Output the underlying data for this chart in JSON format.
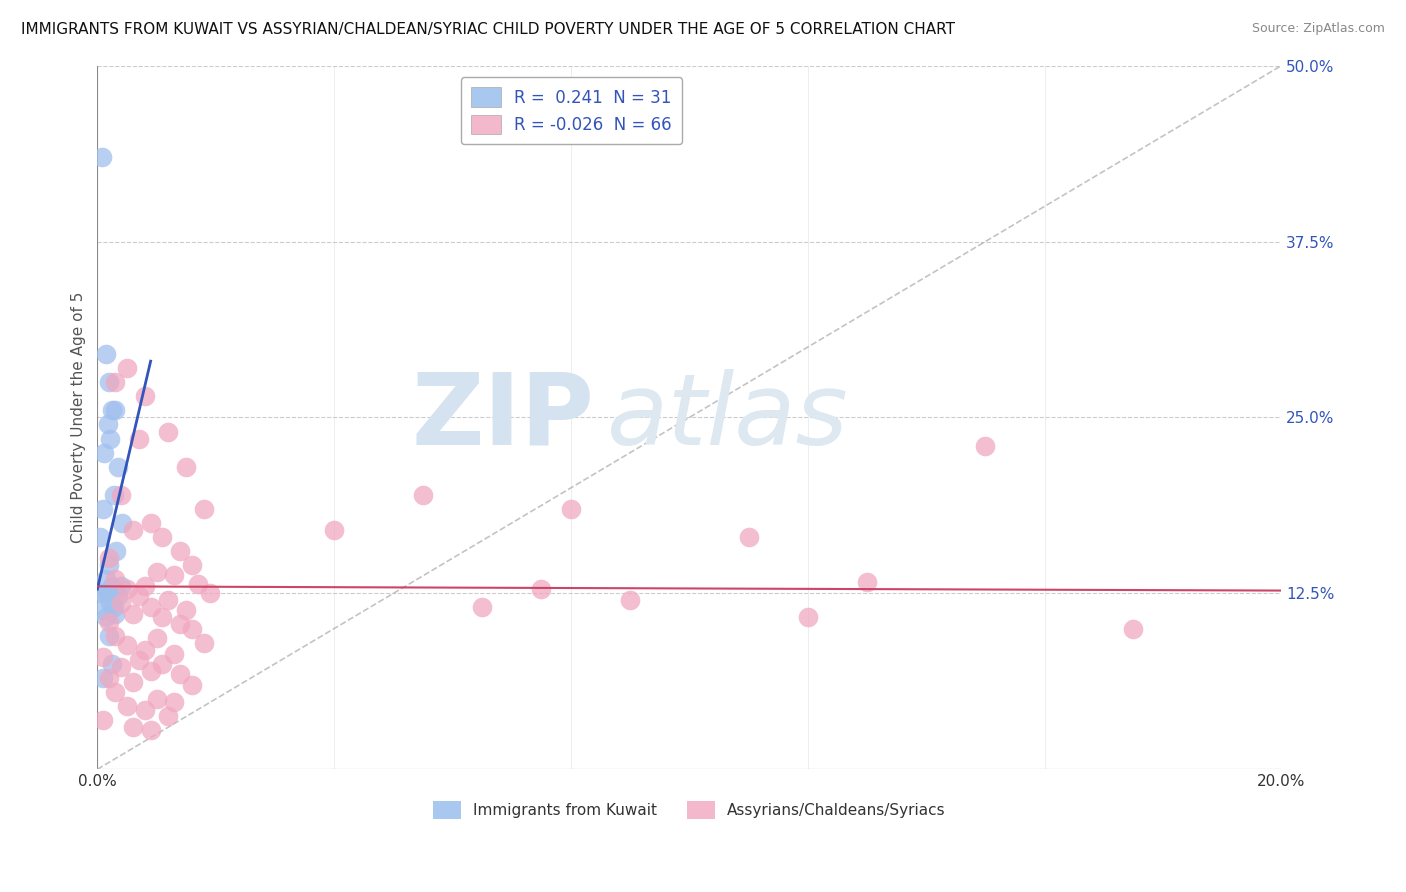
{
  "title": "IMMIGRANTS FROM KUWAIT VS ASSYRIAN/CHALDEAN/SYRIAC CHILD POVERTY UNDER THE AGE OF 5 CORRELATION CHART",
  "source": "Source: ZipAtlas.com",
  "ylabel": "Child Poverty Under the Age of 5",
  "xlim": [
    0.0,
    0.2
  ],
  "ylim": [
    0.0,
    0.5
  ],
  "xticks": [
    0.0,
    0.04,
    0.08,
    0.12,
    0.16,
    0.2
  ],
  "xtick_labels": [
    "0.0%",
    "",
    "",
    "",
    "",
    "20.0%"
  ],
  "ytick_labels_right": [
    "50.0%",
    "37.5%",
    "25.0%",
    "12.5%"
  ],
  "ytick_vals_right": [
    0.5,
    0.375,
    0.25,
    0.125
  ],
  "legend_color1": "#a8c8f0",
  "legend_color2": "#f4b8cc",
  "color1": "#a0c0ee",
  "color2": "#f0a8c0",
  "line_color1": "#3355bb",
  "line_color2": "#cc4466",
  "legend_text_color": "#3355bb",
  "background_color": "#ffffff",
  "grid_color": "#cccccc",
  "scatter1_x": [
    0.0008,
    0.0015,
    0.002,
    0.0025,
    0.003,
    0.0018,
    0.0022,
    0.0012,
    0.0035,
    0.0028,
    0.001,
    0.0042,
    0.0005,
    0.0032,
    0.002,
    0.0015,
    0.004,
    0.0025,
    0.003,
    0.0008,
    0.0018,
    0.0012,
    0.0035,
    0.0022,
    0.0028,
    0.001,
    0.003,
    0.0015,
    0.002,
    0.0025,
    0.001
  ],
  "scatter1_y": [
    0.435,
    0.295,
    0.275,
    0.255,
    0.255,
    0.245,
    0.235,
    0.225,
    0.215,
    0.195,
    0.185,
    0.175,
    0.165,
    0.155,
    0.145,
    0.135,
    0.13,
    0.13,
    0.128,
    0.125,
    0.125,
    0.125,
    0.123,
    0.118,
    0.115,
    0.113,
    0.11,
    0.108,
    0.095,
    0.075,
    0.065
  ],
  "scatter2_x": [
    0.005,
    0.008,
    0.003,
    0.012,
    0.007,
    0.015,
    0.004,
    0.018,
    0.009,
    0.006,
    0.011,
    0.014,
    0.002,
    0.016,
    0.01,
    0.013,
    0.003,
    0.017,
    0.008,
    0.005,
    0.019,
    0.007,
    0.012,
    0.004,
    0.009,
    0.015,
    0.006,
    0.011,
    0.002,
    0.014,
    0.016,
    0.003,
    0.01,
    0.018,
    0.005,
    0.008,
    0.013,
    0.001,
    0.007,
    0.011,
    0.004,
    0.009,
    0.014,
    0.002,
    0.006,
    0.016,
    0.003,
    0.01,
    0.013,
    0.005,
    0.008,
    0.012,
    0.001,
    0.006,
    0.009,
    0.15,
    0.08,
    0.055,
    0.04,
    0.11,
    0.13,
    0.075,
    0.09,
    0.065,
    0.12,
    0.175
  ],
  "scatter2_y": [
    0.285,
    0.265,
    0.275,
    0.24,
    0.235,
    0.215,
    0.195,
    0.185,
    0.175,
    0.17,
    0.165,
    0.155,
    0.15,
    0.145,
    0.14,
    0.138,
    0.135,
    0.132,
    0.13,
    0.128,
    0.125,
    0.123,
    0.12,
    0.118,
    0.115,
    0.113,
    0.11,
    0.108,
    0.105,
    0.103,
    0.1,
    0.095,
    0.093,
    0.09,
    0.088,
    0.085,
    0.082,
    0.08,
    0.078,
    0.075,
    0.073,
    0.07,
    0.068,
    0.065,
    0.062,
    0.06,
    0.055,
    0.05,
    0.048,
    0.045,
    0.042,
    0.038,
    0.035,
    0.03,
    0.028,
    0.23,
    0.185,
    0.195,
    0.17,
    0.165,
    0.133,
    0.128,
    0.12,
    0.115,
    0.108,
    0.1
  ],
  "blue_line_x": [
    0.0,
    0.009
  ],
  "blue_line_y_start": 0.128,
  "blue_line_slope": 18.0,
  "pink_line_x": [
    0.0,
    0.2
  ],
  "pink_line_y_start": 0.13,
  "pink_line_y_end": 0.127
}
